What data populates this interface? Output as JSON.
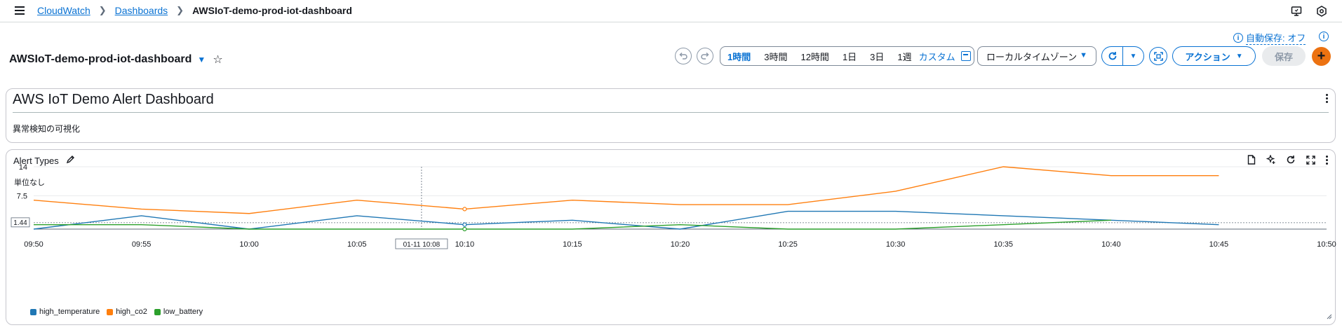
{
  "breadcrumb": {
    "items": [
      "CloudWatch",
      "Dashboards"
    ],
    "current": "AWSIoT-demo-prod-iot-dashboard"
  },
  "header": {
    "title": "AWSIoT-demo-prod-iot-dashboard",
    "autosave_label": "自動保存: オフ",
    "time_ranges": [
      "1時間",
      "3時間",
      "12時間",
      "1日",
      "3日",
      "1週"
    ],
    "active_range": "1時間",
    "custom_label": "カスタム",
    "timezone": "ローカルタイムゾーン",
    "action_label": "アクション",
    "save_label": "保存"
  },
  "text_widget": {
    "title": "AWS IoT Demo Alert Dashboard",
    "description": "異常検知の可視化"
  },
  "chart_widget": {
    "title": "Alert Types",
    "unit_label": "単位なし"
  },
  "colors": {
    "high_temperature": "#1f77b4",
    "high_co2": "#ff7f0e",
    "low_battery": "#2ca02c",
    "accent": "#0972d3",
    "add_button": "#ec7211"
  },
  "chart_data": {
    "type": "line",
    "title": "Alert Types",
    "ylabel": "単位なし",
    "x_ticks": [
      "09:50",
      "09:55",
      "10:00",
      "10:05",
      "10:10",
      "10:15",
      "10:20",
      "10:25",
      "10:30",
      "10:35",
      "10:40",
      "10:45",
      "10:50"
    ],
    "y_ticks": [
      7.5,
      14
    ],
    "ylim": [
      0,
      14
    ],
    "x": [
      "09:50",
      "09:55",
      "10:00",
      "10:05",
      "10:10",
      "10:15",
      "10:20",
      "10:25",
      "10:30",
      "10:35",
      "10:40",
      "10:45"
    ],
    "series": [
      {
        "name": "high_temperature",
        "values": [
          0,
          3,
          0,
          3,
          1,
          2,
          0,
          4,
          4,
          3,
          2,
          1
        ]
      },
      {
        "name": "high_co2",
        "values": [
          6.5,
          4.5,
          3.5,
          6.5,
          4.5,
          6.5,
          5.5,
          5.5,
          8.5,
          14,
          12,
          12
        ]
      },
      {
        "name": "low_battery",
        "values": [
          1,
          1,
          0,
          0,
          0,
          0,
          1,
          0,
          0,
          1,
          2,
          null
        ]
      }
    ],
    "hover": {
      "x_label": "01-11 10:08",
      "y_label": "1.44",
      "y": 1.44
    },
    "grid": true,
    "legend_position": "bottom-left"
  }
}
